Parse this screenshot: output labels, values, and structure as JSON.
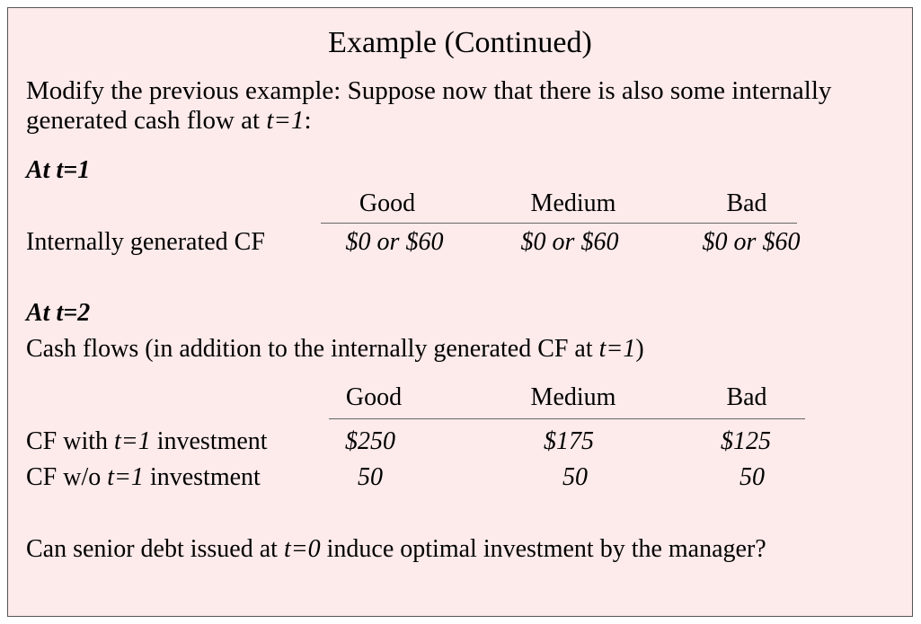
{
  "title": "Example  (Continued)",
  "intro": {
    "text": "Modify the previous example: Suppose now that there is also some internally generated cash flow at ",
    "var": "t=1",
    "suffix": ":"
  },
  "t1": {
    "heading": "At t=1",
    "columns": [
      "Good",
      "Medium",
      "Bad"
    ],
    "row_label": "Internally generated CF",
    "values": [
      "$0 or $60",
      "$0 or $60",
      "$0 or $60"
    ]
  },
  "t2": {
    "heading": "At t=2",
    "description": {
      "prefix": "Cash flows (in addition to the internally generated CF at ",
      "var": "t=1",
      "suffix": ")"
    },
    "columns": [
      "Good",
      "Medium",
      "Bad"
    ],
    "rows": [
      {
        "label_prefix": "CF with ",
        "label_var": "t=1",
        "label_suffix": " investment",
        "values": [
          "$250",
          "$175",
          "$125"
        ]
      },
      {
        "label_prefix": "CF w/o ",
        "label_var": "t=1",
        "label_suffix": " investment",
        "values": [
          "50",
          "50",
          "50"
        ]
      }
    ]
  },
  "question": {
    "prefix": "Can senior debt issued at ",
    "var": "t=0",
    "suffix": " induce optimal investment by the manager?"
  }
}
